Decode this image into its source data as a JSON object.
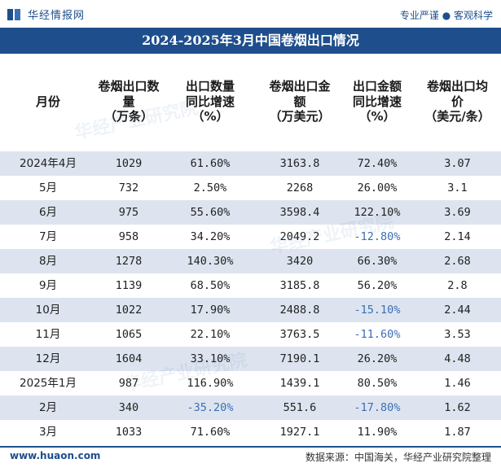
{
  "header": {
    "logo_text": "华经情报网",
    "tagline": "专业严谨 ● 客观科学"
  },
  "title": "2024-2025年3月中国卷烟出口情况",
  "colors": {
    "accent": "#1f4e8c",
    "stripe": "#dde4ef",
    "negative": "#3b6fb5"
  },
  "watermark": "华经产业研究院",
  "chart_data": {
    "type": "table",
    "title": "2024-2025年3月中国卷烟出口情况",
    "columns": [
      "月份",
      "卷烟出口数\n量\n（万条）",
      "出口数量\n同比增速\n（%）",
      "卷烟出口金\n额\n（万美元）",
      "出口金额\n同比增速\n（%）",
      "卷烟出口均\n价\n（美元/条）"
    ],
    "rows": [
      [
        "2024年4月",
        "1029",
        "61.60%",
        "3163.8",
        "72.40%",
        "3.07"
      ],
      [
        "5月",
        "732",
        "2.50%",
        "2268",
        "26.00%",
        "3.1"
      ],
      [
        "6月",
        "975",
        "55.60%",
        "3598.4",
        "122.10%",
        "3.69"
      ],
      [
        "7月",
        "958",
        "34.20%",
        "2049.2",
        "-12.80%",
        "2.14"
      ],
      [
        "8月",
        "1278",
        "140.30%",
        "3420",
        "66.30%",
        "2.68"
      ],
      [
        "9月",
        "1139",
        "68.50%",
        "3185.8",
        "56.20%",
        "2.8"
      ],
      [
        "10月",
        "1022",
        "17.90%",
        "2488.8",
        "-15.10%",
        "2.44"
      ],
      [
        "11月",
        "1065",
        "22.10%",
        "3763.5",
        "-11.60%",
        "3.53"
      ],
      [
        "12月",
        "1604",
        "33.10%",
        "7190.1",
        "26.20%",
        "4.48"
      ],
      [
        "2025年1月",
        "987",
        "116.90%",
        "1439.1",
        "80.50%",
        "1.46"
      ],
      [
        "2月",
        "340",
        "-35.20%",
        "551.6",
        "-17.80%",
        "1.62"
      ],
      [
        "3月",
        "1033",
        "71.60%",
        "1927.1",
        "11.90%",
        "1.87"
      ]
    ]
  },
  "footer": {
    "left": "www.huaon.com",
    "right": "数据来源：中国海关，华经产业研究院整理"
  }
}
